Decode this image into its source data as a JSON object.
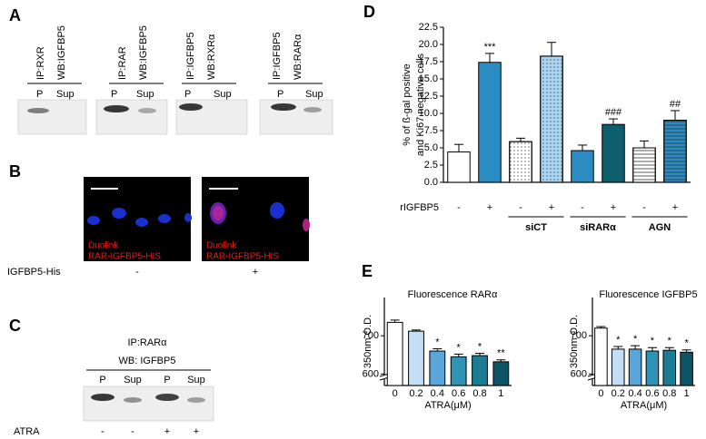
{
  "panels": {
    "A": {
      "letter": "A",
      "blots": [
        {
          "ip": "IP:RXR",
          "wb": "WB:IGFBP5",
          "lanes": [
            "P",
            "Sup"
          ]
        },
        {
          "ip": "IP:RAR",
          "wb": "WB:IGFBP5",
          "lanes": [
            "P",
            "Sup"
          ]
        },
        {
          "ip": "IP:IGFBP5",
          "wb": "WB:RXRα",
          "lanes": [
            "P",
            "Sup"
          ]
        },
        {
          "ip": "IP:IGFBP5",
          "wb": "WB:RARα",
          "lanes": [
            "P",
            "Sup"
          ]
        }
      ]
    },
    "B": {
      "letter": "B",
      "images": [
        {
          "line1": "Duolink",
          "line2": "RAR-IGFBP5-HIS"
        },
        {
          "line1": "Duolink",
          "line2": "RAR-IGFBP5-HIS"
        }
      ],
      "row_label": "IGFBP5-His",
      "conditions": [
        "-",
        "+"
      ]
    },
    "C": {
      "letter": "C",
      "ip": "IP:RARα",
      "wb": "WB: IGFBP5",
      "lanes": [
        "P",
        "Sup",
        "P",
        "Sup"
      ],
      "row_label": "ATRA",
      "conditions": [
        "-",
        "-",
        "+",
        "+"
      ]
    },
    "D": {
      "letter": "D"
    },
    "E": {
      "letter": "E"
    }
  },
  "chart_data": [
    {
      "type": "bar",
      "y_label": [
        "% of ß-gal positive",
        "and Ki67 negative cells"
      ],
      "x_label": "rIGFBP5",
      "categories": [
        "-",
        "+",
        "-",
        "+",
        "-",
        "+",
        "-",
        "+"
      ],
      "values": [
        4.4,
        17.4,
        5.9,
        18.3,
        4.6,
        8.4,
        5.0,
        9.0
      ],
      "errors": [
        1.1,
        1.3,
        0.5,
        2.0,
        0.8,
        0.8,
        1.0,
        1.4
      ],
      "colors": [
        "#ffffff",
        "#2b8cc4",
        "#ffffff",
        "#a9d4f2",
        "#2b8cc4",
        "#0e5f6e",
        "#ffffff",
        "#2b8cc4"
      ],
      "patterns": [
        "none",
        "none",
        "dots",
        "dots",
        "none",
        "none",
        "stripes",
        "stripes"
      ],
      "significance": [
        null,
        "***",
        null,
        null,
        null,
        "###",
        null,
        "##"
      ],
      "groups": [
        {
          "label": "siCT",
          "categories": [
            2,
            3
          ]
        },
        {
          "label": "siRARα",
          "categories": [
            4,
            5
          ]
        },
        {
          "label": "AGN",
          "categories": [
            6,
            7
          ]
        }
      ],
      "ylim": [
        0,
        22.5
      ],
      "yticks": [
        {
          "value": 0,
          "label": "0.0"
        },
        {
          "value": 2.5,
          "label": "2.5"
        },
        {
          "value": 5,
          "label": "5.0"
        },
        {
          "value": 7.5,
          "label": "7.5"
        },
        {
          "value": 10,
          "label": "10.0"
        },
        {
          "value": 12.5,
          "label": "12.5"
        },
        {
          "value": 15,
          "label": "15.0"
        },
        {
          "value": 17.5,
          "label": "17.5"
        },
        {
          "value": 20,
          "label": "20.0"
        },
        {
          "value": 22.5,
          "label": "22.5"
        }
      ]
    },
    {
      "type": "bar",
      "title": "Fluorescence RARα",
      "y_label": [
        "350nm O.D."
      ],
      "x_label": "ATRA(μM)",
      "categories": [
        "0",
        "0.2",
        "0.4",
        "0.6",
        "0.8",
        "1"
      ],
      "values": [
        735,
        712,
        660,
        645,
        648,
        632
      ],
      "errors": [
        6,
        3,
        6,
        7,
        6,
        5
      ],
      "colors": [
        "#ffffff",
        "#c4def3",
        "#5aa5da",
        "#2e93b5",
        "#1b7c93",
        "#0d5566"
      ],
      "significance": [
        null,
        null,
        "*",
        "*",
        "*",
        "**"
      ],
      "ylim": [
        570,
        800
      ],
      "yticks": [
        600,
        700
      ],
      "y_break": true
    },
    {
      "type": "bar",
      "title": "Fluorescence IGFBP5",
      "y_label": [
        "350nm O.D."
      ],
      "x_label": "ATRA(μM)",
      "categories": [
        "0",
        "0.2",
        "0.4",
        "0.6",
        "0.8",
        "1"
      ],
      "values": [
        720,
        665,
        665,
        660,
        662,
        657
      ],
      "errors": [
        4,
        7,
        9,
        9,
        7,
        6
      ],
      "colors": [
        "#ffffff",
        "#c4def3",
        "#5aa5da",
        "#2e93b5",
        "#1b7c93",
        "#0d5566"
      ],
      "significance": [
        null,
        "*",
        "*",
        "*",
        "*",
        "*"
      ],
      "ylim": [
        570,
        800
      ],
      "yticks": [
        600,
        700
      ],
      "y_break": true
    }
  ]
}
